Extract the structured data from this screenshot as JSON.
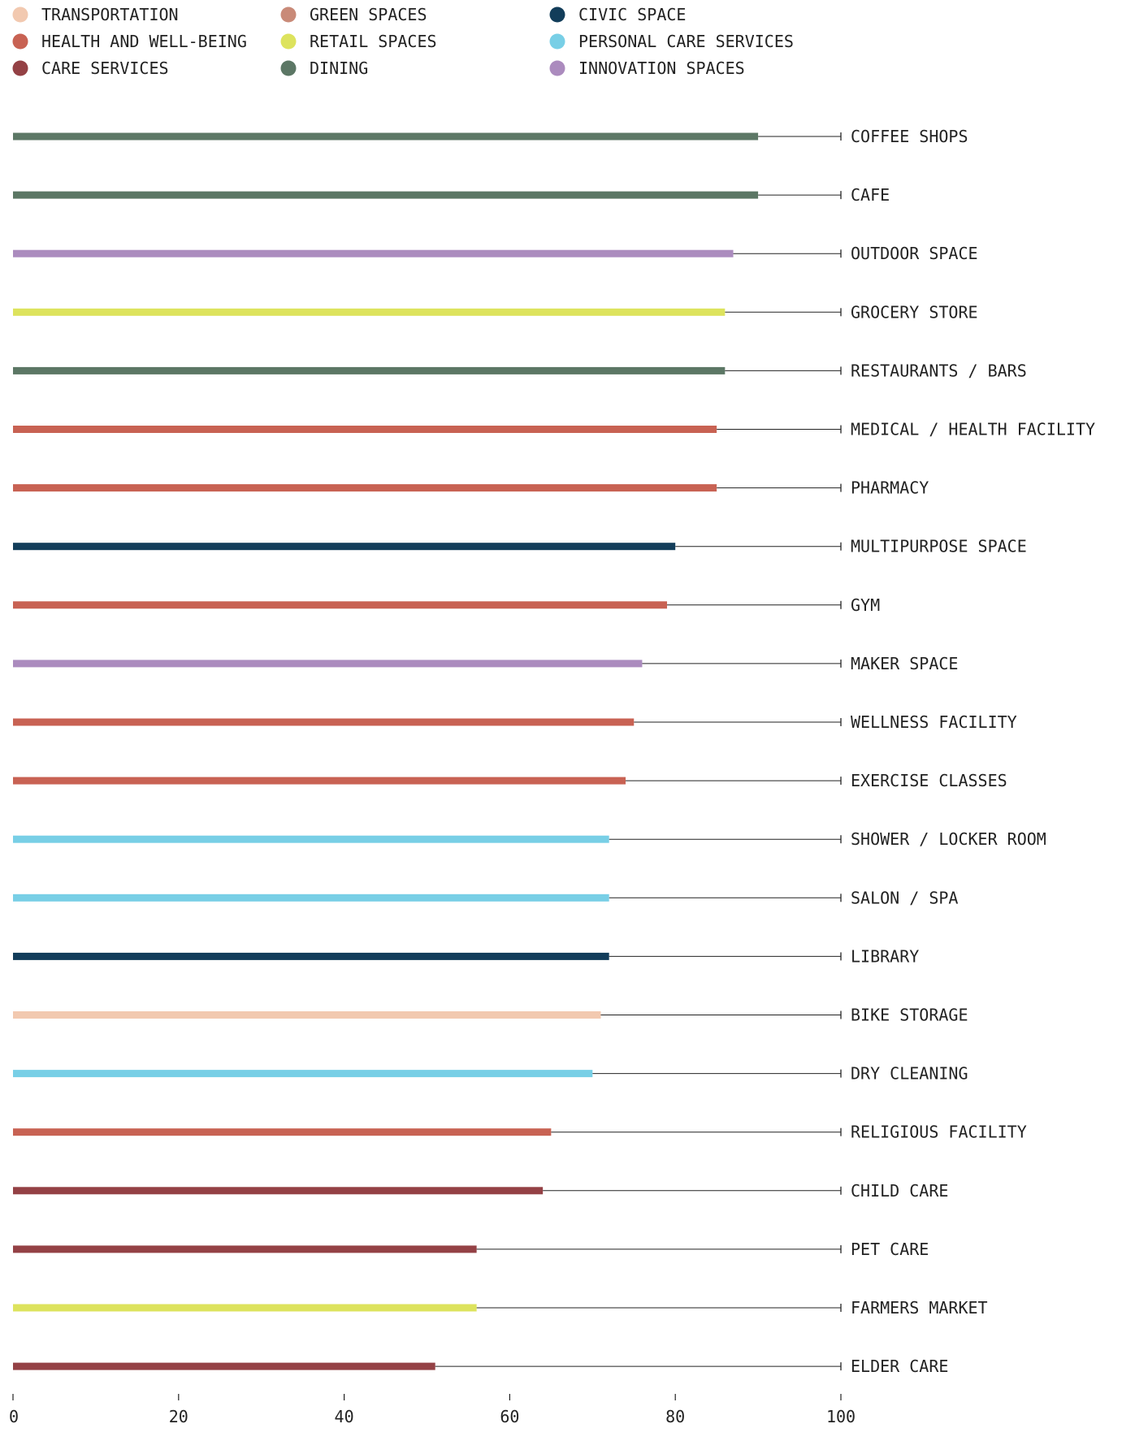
{
  "chart_data": {
    "type": "bar",
    "orientation": "horizontal",
    "legend": [
      {
        "name": "TRANSPORTATION",
        "color": "#f2c9b0"
      },
      {
        "name": "HEALTH AND WELL-BEING",
        "color": "#c86253"
      },
      {
        "name": "CARE SERVICES",
        "color": "#944145"
      },
      {
        "name": "GREEN SPACES",
        "color": "#c98a78"
      },
      {
        "name": "RETAIL SPACES",
        "color": "#dde35d"
      },
      {
        "name": "DINING",
        "color": "#5c7765"
      },
      {
        "name": "CIVIC SPACE",
        "color": "#123d5a"
      },
      {
        "name": "PERSONAL CARE SERVICES",
        "color": "#78cfe6"
      },
      {
        "name": "INNOVATION SPACES",
        "color": "#ab8bbe"
      }
    ],
    "legend_placement": "top",
    "categories": [
      "COFFEE SHOPS",
      "CAFE",
      "OUTDOOR SPACE",
      "GROCERY STORE",
      "RESTAURANTS / BARS",
      "MEDICAL / HEALTH FACILITY",
      "PHARMACY",
      "MULTIPURPOSE SPACE",
      "GYM",
      "MAKER SPACE",
      "WELLNESS FACILITY",
      "EXERCISE CLASSES",
      "SHOWER / LOCKER ROOM",
      "SALON / SPA",
      "LIBRARY",
      "BIKE STORAGE",
      "DRY CLEANING",
      "RELIGIOUS FACILITY",
      "CHILD CARE",
      "PET CARE",
      "FARMERS MARKET",
      "ELDER CARE"
    ],
    "values": [
      90,
      90,
      87,
      86,
      86,
      85,
      85,
      80,
      79,
      76,
      75,
      74,
      72,
      72,
      72,
      71,
      70,
      65,
      64,
      56,
      56,
      51
    ],
    "groups": [
      "DINING",
      "DINING",
      "INNOVATION SPACES",
      "RETAIL SPACES",
      "DINING",
      "HEALTH AND WELL-BEING",
      "HEALTH AND WELL-BEING",
      "CIVIC SPACE",
      "HEALTH AND WELL-BEING",
      "INNOVATION SPACES",
      "HEALTH AND WELL-BEING",
      "HEALTH AND WELL-BEING",
      "PERSONAL CARE SERVICES",
      "PERSONAL CARE SERVICES",
      "CIVIC SPACE",
      "TRANSPORTATION",
      "PERSONAL CARE SERVICES",
      "HEALTH AND WELL-BEING",
      "CARE SERVICES",
      "CARE SERVICES",
      "RETAIL SPACES",
      "CARE SERVICES"
    ],
    "xlim": [
      0,
      100
    ],
    "xticks": [
      0,
      20,
      40,
      60,
      80,
      100
    ],
    "xtick_labels": [
      "0",
      "20",
      "40",
      "60",
      "80",
      "100"
    ],
    "title": "",
    "xlabel": "",
    "ylabel": "",
    "grid": false
  }
}
